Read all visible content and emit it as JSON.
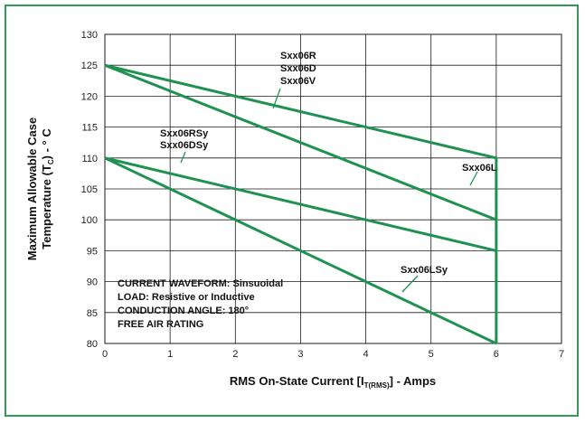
{
  "colors": {
    "frame": "#2e9a56",
    "series": "#1f9150",
    "grid": "#1a1a1a"
  },
  "chart_data": {
    "type": "line",
    "title": "",
    "xlabel": {
      "prefix": "RMS On-State Current [I",
      "sub": "T(RMS)",
      "suffix": "] - Amps"
    },
    "ylabel": {
      "line1": "Maximum Allowable Case",
      "line2_prefix": "Temperature (T",
      "line2_sub": "C",
      "line2_suffix": ") - ° C"
    },
    "xlim": [
      0,
      7
    ],
    "ylim": [
      80,
      130
    ],
    "xticks": [
      0,
      1,
      2,
      3,
      4,
      5,
      6,
      7
    ],
    "yticks": [
      80,
      85,
      90,
      95,
      100,
      105,
      110,
      115,
      120,
      125,
      130
    ],
    "grid": true,
    "series": [
      {
        "name": "Sxx06R / Sxx06D / Sxx06V",
        "x": [
          0,
          6,
          6
        ],
        "y": [
          125,
          110,
          80
        ]
      },
      {
        "name": "Sxx06L",
        "x": [
          0,
          6
        ],
        "y": [
          125,
          100
        ]
      },
      {
        "name": "Sxx06RSy / Sxx06DSy",
        "x": [
          0,
          6
        ],
        "y": [
          110,
          95
        ]
      },
      {
        "name": "Sxx06LSy",
        "x": [
          0,
          6
        ],
        "y": [
          110,
          80
        ]
      }
    ],
    "annotations": {
      "rdv": [
        "Sxx06R",
        "Sxx06D",
        "Sxx06V"
      ],
      "rsy": [
        "Sxx06RSy",
        "Sxx06DSy"
      ],
      "l": "Sxx06L",
      "lsy": "Sxx06LSy"
    },
    "conditions": [
      "CURRENT WAVEFORM:  Sinsuoidal",
      "LOAD:  Resistive or Inductive",
      "CONDUCTION ANGLE:  180°",
      "FREE AIR RATING"
    ]
  }
}
